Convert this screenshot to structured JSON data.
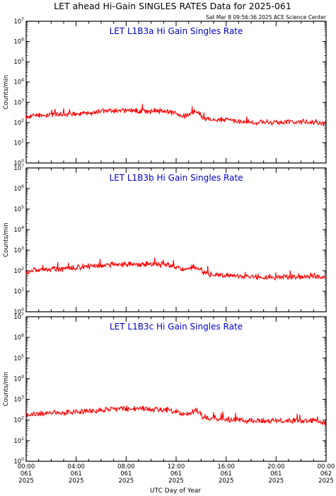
{
  "page_title": "LET ahead Hi-Gain SINGLES RATES Data for 2025-061",
  "timestamp": "Sat Mar  8 09:56:36 2025 ACE Science Center",
  "y_axis_label": "Counts/min",
  "x_axis_label": "UTC Day of Year",
  "colors": {
    "series": "#ff0000",
    "panel_title": "#0000cc",
    "axes": "#000000"
  },
  "chart_data": [
    {
      "type": "line",
      "title": "LET L1B3a Hi Gain Singles Rate",
      "ylabel": "Counts/min",
      "yscale": "log",
      "ylim": [
        1,
        10000000
      ],
      "ytick_labels": [
        {
          "base": "10",
          "exp": "0"
        },
        {
          "base": "10",
          "exp": "1"
        },
        {
          "base": "10",
          "exp": "2"
        },
        {
          "base": "10",
          "exp": "3"
        },
        {
          "base": "10",
          "exp": "4"
        },
        {
          "base": "10",
          "exp": "5"
        },
        {
          "base": "10",
          "exp": "6"
        },
        {
          "base": "10",
          "exp": "7"
        }
      ],
      "series": [
        {
          "color": "#ff0000",
          "x": [
            0,
            1,
            2,
            3,
            4,
            5,
            6,
            7,
            8,
            9,
            10,
            11,
            12,
            12.5,
            13,
            13.5,
            13.9,
            14.1,
            15,
            16,
            17,
            18,
            19,
            20,
            21,
            22,
            23,
            24
          ],
          "y": [
            190,
            230,
            250,
            240,
            270,
            300,
            350,
            380,
            390,
            380,
            370,
            360,
            300,
            200,
            240,
            320,
            310,
            170,
            140,
            130,
            115,
            100,
            105,
            100,
            100,
            105,
            110,
            90
          ]
        }
      ]
    },
    {
      "type": "line",
      "title": "LET L1B3b Hi Gain Singles Rate",
      "ylabel": "Counts/min",
      "yscale": "log",
      "ylim": [
        1,
        10000000
      ],
      "ytick_labels": [
        {
          "base": "10",
          "exp": "0"
        },
        {
          "base": "10",
          "exp": "1"
        },
        {
          "base": "10",
          "exp": "2"
        },
        {
          "base": "10",
          "exp": "3"
        },
        {
          "base": "10",
          "exp": "4"
        },
        {
          "base": "10",
          "exp": "5"
        },
        {
          "base": "10",
          "exp": "6"
        },
        {
          "base": "10",
          "exp": "7"
        }
      ],
      "series": [
        {
          "color": "#ff0000",
          "x": [
            0,
            1,
            2,
            3,
            4,
            5,
            6,
            7,
            8,
            9,
            10,
            11,
            12,
            12.5,
            13,
            13.5,
            13.9,
            14.1,
            15,
            16,
            17,
            18,
            19,
            20,
            21,
            22,
            23,
            24
          ],
          "y": [
            95,
            110,
            120,
            125,
            140,
            160,
            180,
            200,
            210,
            205,
            200,
            190,
            160,
            110,
            130,
            160,
            150,
            80,
            65,
            60,
            55,
            50,
            50,
            48,
            50,
            52,
            55,
            40
          ]
        }
      ]
    },
    {
      "type": "line",
      "title": "LET L1B3c Hi Gain Singles Rate",
      "ylabel": "Counts/min",
      "yscale": "log",
      "ylim": [
        1,
        10000000
      ],
      "ytick_labels": [
        {
          "base": "10",
          "exp": "0"
        },
        {
          "base": "10",
          "exp": "1"
        },
        {
          "base": "10",
          "exp": "2"
        },
        {
          "base": "10",
          "exp": "3"
        },
        {
          "base": "10",
          "exp": "4"
        },
        {
          "base": "10",
          "exp": "5"
        },
        {
          "base": "10",
          "exp": "6"
        },
        {
          "base": "10",
          "exp": "7"
        }
      ],
      "series": [
        {
          "color": "#ff0000",
          "x": [
            0,
            1,
            2,
            3,
            4,
            5,
            6,
            7,
            8,
            9,
            10,
            11,
            12,
            12.5,
            13,
            13.5,
            13.9,
            14.1,
            15,
            16,
            17,
            18,
            19,
            20,
            21,
            22,
            23,
            24
          ],
          "y": [
            160,
            200,
            220,
            215,
            240,
            270,
            310,
            340,
            360,
            350,
            340,
            320,
            270,
            180,
            220,
            290,
            280,
            150,
            120,
            110,
            100,
            90,
            90,
            88,
            90,
            92,
            95,
            70
          ]
        }
      ]
    }
  ],
  "x_ticks": [
    {
      "hour": 0,
      "time": "00:00",
      "day": "061",
      "year": "2025"
    },
    {
      "hour": 4,
      "time": "04:00",
      "day": "061",
      "year": "2025"
    },
    {
      "hour": 8,
      "time": "08:00",
      "day": "061",
      "year": "2025"
    },
    {
      "hour": 12,
      "time": "12:00",
      "day": "061",
      "year": "2025"
    },
    {
      "hour": 16,
      "time": "16:00",
      "day": "061",
      "year": "2025"
    },
    {
      "hour": 20,
      "time": "20:00",
      "day": "061",
      "year": "2025"
    },
    {
      "hour": 24,
      "time": "00:00",
      "day": "062",
      "year": "2025"
    }
  ]
}
